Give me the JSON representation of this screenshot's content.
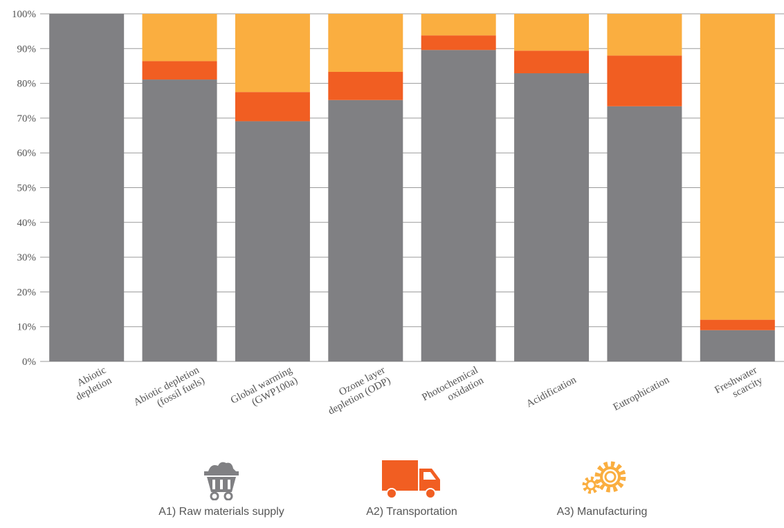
{
  "chart_data": {
    "type": "bar",
    "stacked": true,
    "categories": [
      [
        "Abiotic",
        "depletion"
      ],
      [
        "Abiotic depletion",
        "(fossil fuels)"
      ],
      [
        "Global warming",
        "(GWP100a)"
      ],
      [
        "Ozone layer",
        "depletion (ODP)"
      ],
      [
        "Photochemical",
        "oxidation"
      ],
      [
        "Acidification"
      ],
      [
        "Eutrophication"
      ],
      [
        "Freshwater",
        "scarcity"
      ]
    ],
    "series": [
      {
        "name": "A1) Raw materials supply",
        "color": "#808083",
        "values": [
          100,
          81.1,
          69.1,
          75.2,
          89.6,
          82.9,
          73.4,
          9.0
        ]
      },
      {
        "name": "A2) Transportation",
        "color": "#F15E22",
        "values": [
          0,
          5.3,
          8.4,
          8.1,
          4.2,
          6.5,
          14.6,
          3.0
        ]
      },
      {
        "name": "A3) Manufacturing",
        "color": "#FAAE40",
        "values": [
          0,
          13.6,
          22.5,
          16.7,
          6.2,
          10.6,
          12.0,
          88.0
        ]
      }
    ],
    "ylim": [
      0,
      100
    ],
    "yticks": [
      "0%",
      "10%",
      "20%",
      "30%",
      "40%",
      "50%",
      "60%",
      "70%",
      "80%",
      "90%",
      "100%"
    ],
    "grid": true,
    "legend_position": "bottom"
  },
  "legend": {
    "items": [
      {
        "label": "A1) Raw materials supply",
        "icon": "mine-cart-icon",
        "color": "#808083"
      },
      {
        "label": "A2) Transportation",
        "icon": "truck-icon",
        "color": "#F15E22"
      },
      {
        "label": "A3) Manufacturing",
        "icon": "gears-icon",
        "color": "#FAAE40"
      }
    ]
  }
}
